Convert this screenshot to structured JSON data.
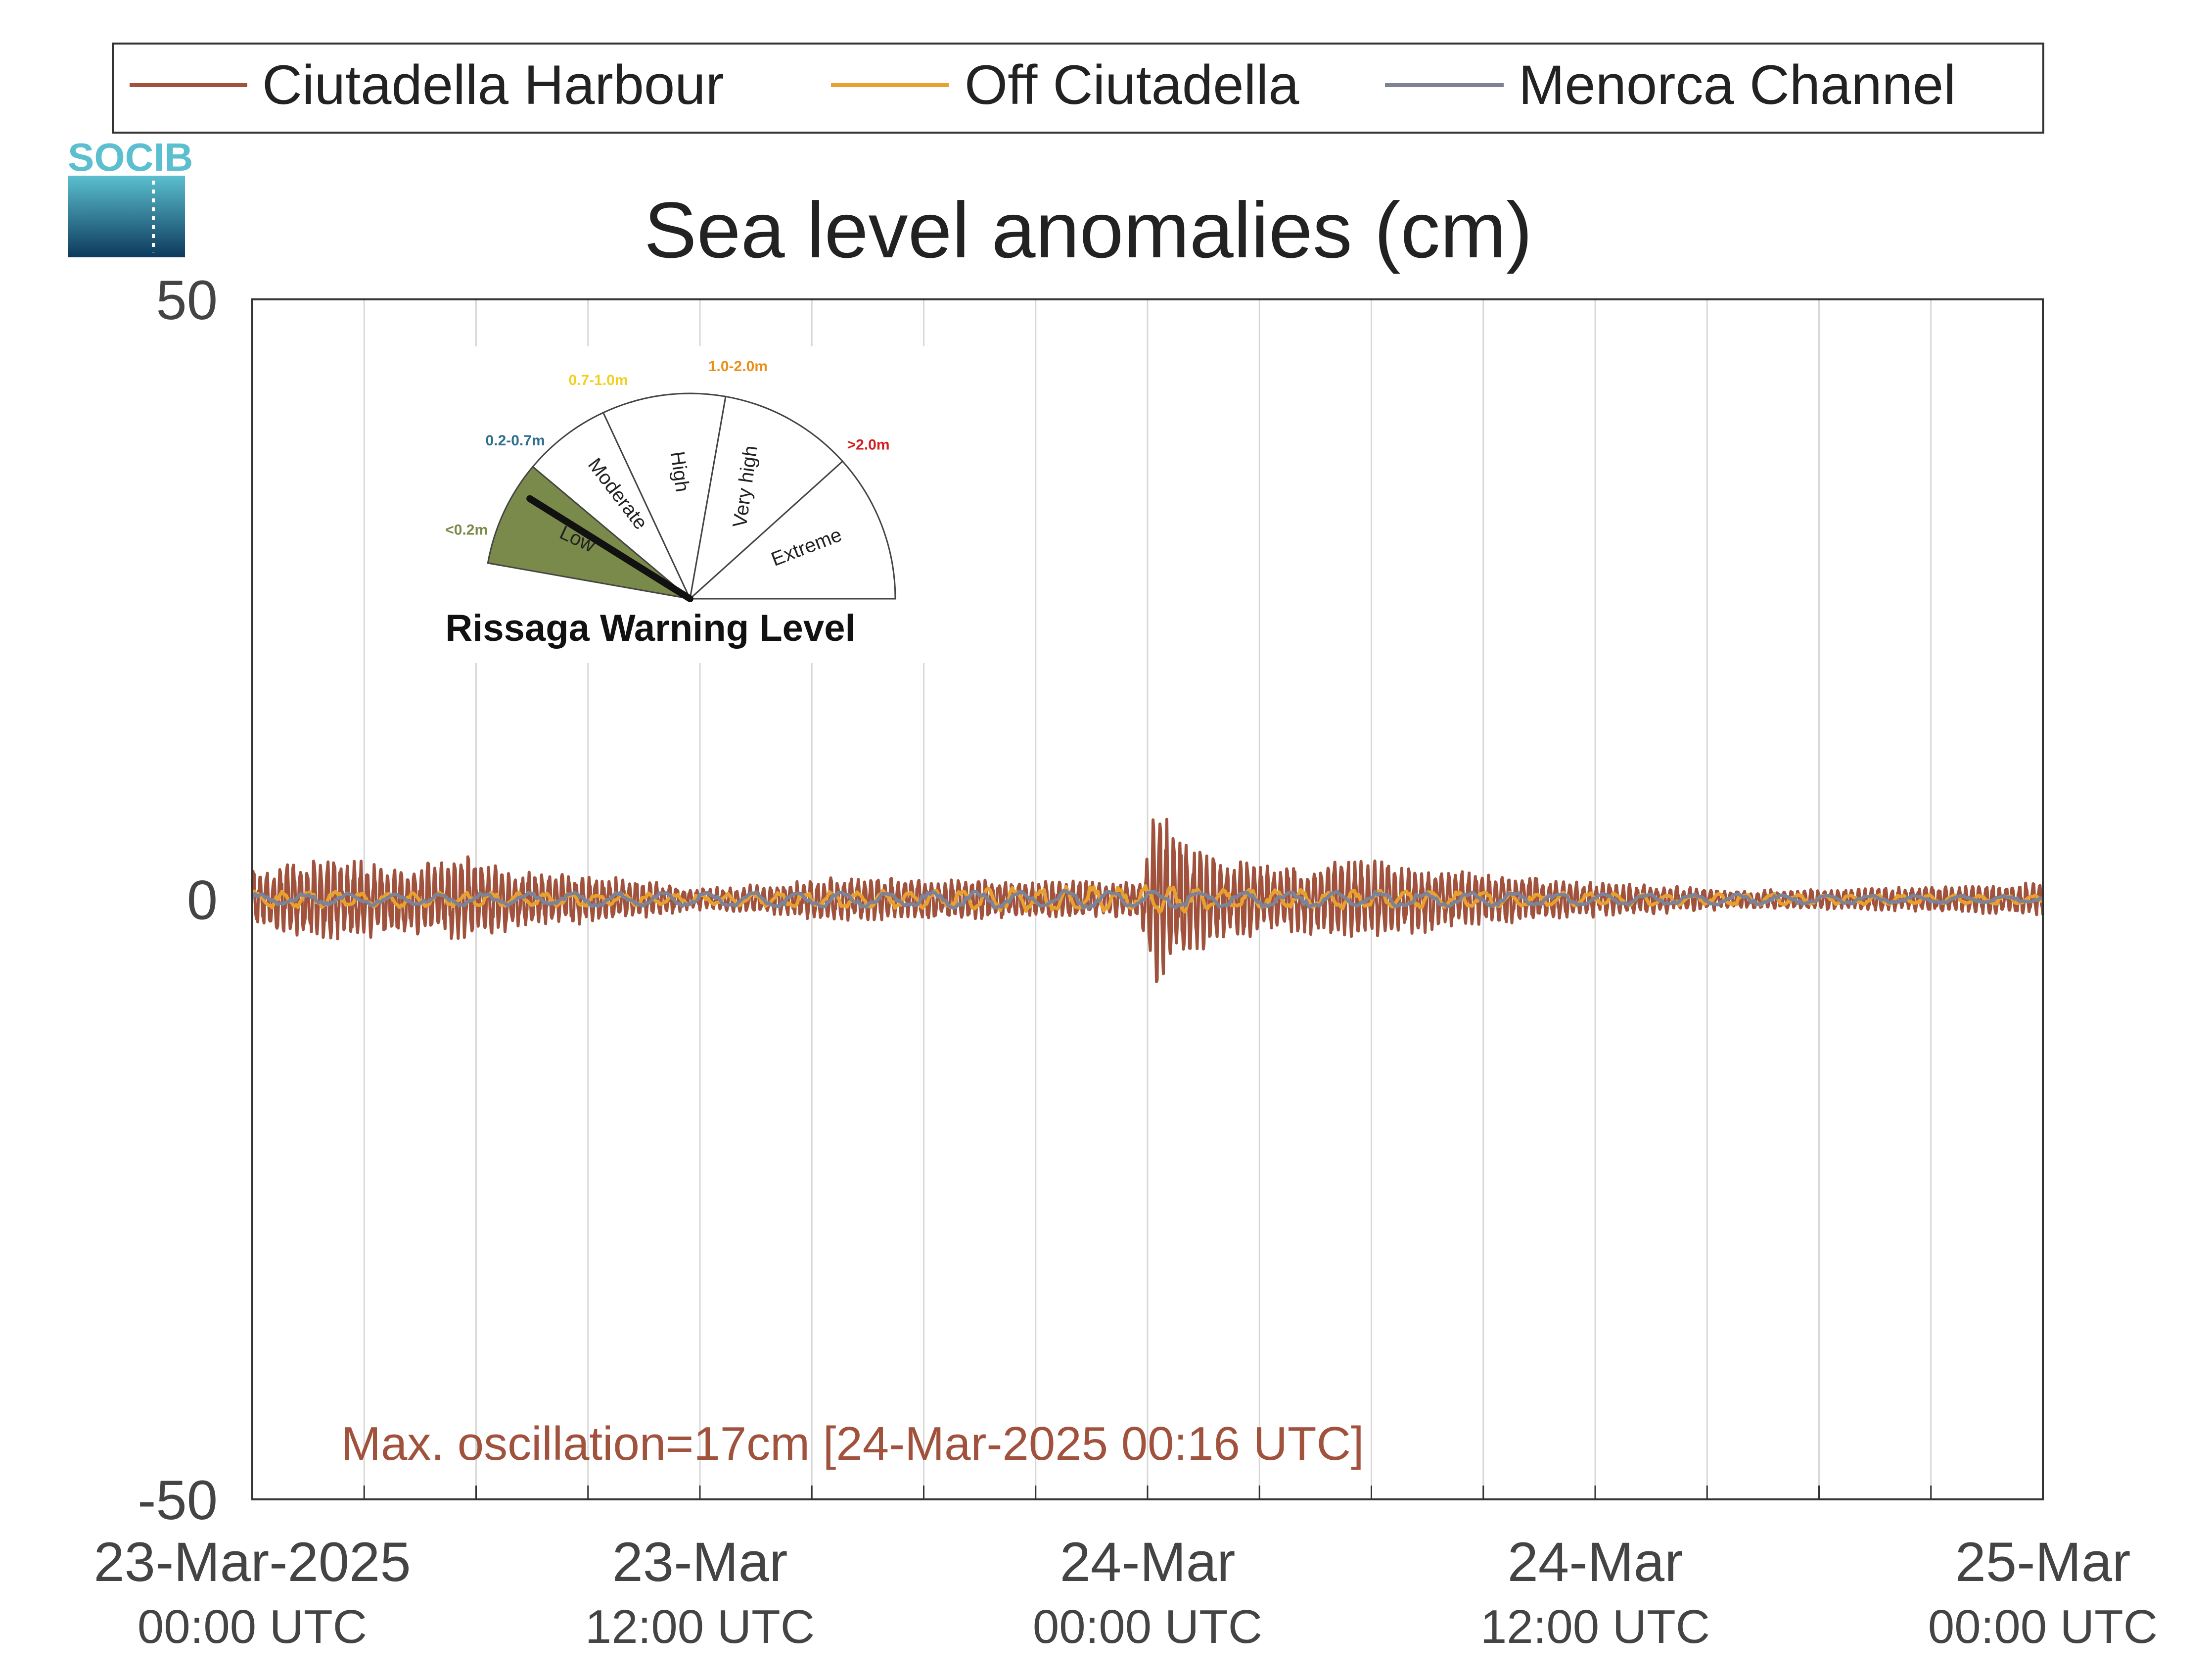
{
  "logo": {
    "text": "SOCIB",
    "color": "#5bbfcf"
  },
  "legend": {
    "position": "top",
    "items": [
      {
        "name": "Ciutadella Harbour",
        "color": "#a0523d"
      },
      {
        "name": "Off Ciutadella",
        "color": "#e8a030"
      },
      {
        "name": "Menorca Channel",
        "color": "#7d8396"
      }
    ]
  },
  "gauge": {
    "title": "Rissaga Warning Level",
    "current_level": "Low",
    "levels": [
      {
        "label": "Low",
        "range": "<0.2m",
        "color": "#7a8a4a",
        "range_color": "#7a8a4a"
      },
      {
        "label": "Moderate",
        "range": "0.2-0.7m",
        "color": "#ffffff",
        "range_color": "#2e6e8e"
      },
      {
        "label": "High",
        "range": "0.7-1.0m",
        "color": "#ffffff",
        "range_color": "#f0d020"
      },
      {
        "label": "Very high",
        "range": "1.0-2.0m",
        "color": "#ffffff",
        "range_color": "#e8901a"
      },
      {
        "label": "Extreme",
        "range": ">2.0m",
        "color": "#ffffff",
        "range_color": "#d02020"
      }
    ]
  },
  "chart_data": {
    "type": "line",
    "title": "Sea level anomalies (cm)",
    "ylim": [
      -50,
      50
    ],
    "yticks": [
      "50",
      "0",
      "-50"
    ],
    "x_range_hours": [
      0,
      48
    ],
    "xticks": [
      {
        "date": "23-Mar-2025",
        "time": "00:00 UTC"
      },
      {
        "date": "23-Mar",
        "time": "12:00 UTC"
      },
      {
        "date": "24-Mar",
        "time": "00:00 UTC"
      },
      {
        "date": "24-Mar",
        "time": "12:00 UTC"
      },
      {
        "date": "25-Mar",
        "time": "00:00 UTC"
      }
    ],
    "grid": true,
    "annotation": {
      "text": "Max. oscillation=17cm [24-Mar-2025 00:16 UTC]",
      "color": "#a0523d"
    },
    "series": [
      {
        "name": "Ciutadella Harbour",
        "color": "#a0523d",
        "envelope": [
          {
            "t": 0,
            "amp": 2.5
          },
          {
            "t": 2,
            "amp": 3.5
          },
          {
            "t": 4,
            "amp": 3.0
          },
          {
            "t": 6,
            "amp": 3.8
          },
          {
            "t": 7,
            "amp": 2.5
          },
          {
            "t": 10,
            "amp": 1.8
          },
          {
            "t": 12,
            "amp": 1.0
          },
          {
            "t": 14,
            "amp": 1.4
          },
          {
            "t": 16,
            "amp": 2.0
          },
          {
            "t": 18,
            "amp": 1.8
          },
          {
            "t": 21,
            "amp": 1.6
          },
          {
            "t": 23.8,
            "amp": 1.5
          },
          {
            "t": 24.2,
            "amp": 8.0
          },
          {
            "t": 25,
            "amp": 5.0
          },
          {
            "t": 26,
            "amp": 3.5
          },
          {
            "t": 28,
            "amp": 2.8
          },
          {
            "t": 30,
            "amp": 3.5
          },
          {
            "t": 32,
            "amp": 2.5
          },
          {
            "t": 36,
            "amp": 1.5
          },
          {
            "t": 40,
            "amp": 0.8
          },
          {
            "t": 44,
            "amp": 1.0
          },
          {
            "t": 48,
            "amp": 1.5
          }
        ]
      },
      {
        "name": "Off Ciutadella",
        "color": "#e8a030",
        "envelope": [
          {
            "t": 0,
            "amp": 0.8
          },
          {
            "t": 12,
            "amp": 0.5
          },
          {
            "t": 24,
            "amp": 1.2
          },
          {
            "t": 26,
            "amp": 0.9
          },
          {
            "t": 36,
            "amp": 0.6
          },
          {
            "t": 48,
            "amp": 0.4
          }
        ]
      },
      {
        "name": "Menorca Channel",
        "color": "#7d8396",
        "envelope": [
          {
            "t": 0,
            "amp": 0.5
          },
          {
            "t": 24,
            "amp": 0.8
          },
          {
            "t": 48,
            "amp": 0.3
          }
        ]
      }
    ]
  }
}
